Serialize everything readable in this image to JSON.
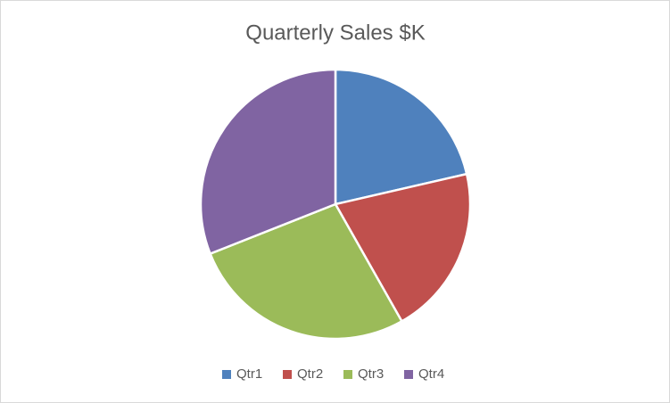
{
  "chart_data": {
    "type": "pie",
    "title": "Quarterly Sales $K",
    "categories": [
      "Qtr1",
      "Qtr2",
      "Qtr3",
      "Qtr4"
    ],
    "values": [
      21.4,
      20.4,
      27.2,
      31.0
    ],
    "colors": [
      "#4f81bd",
      "#c0504d",
      "#9bbb59",
      "#8064a2"
    ],
    "legend": "bottom"
  }
}
